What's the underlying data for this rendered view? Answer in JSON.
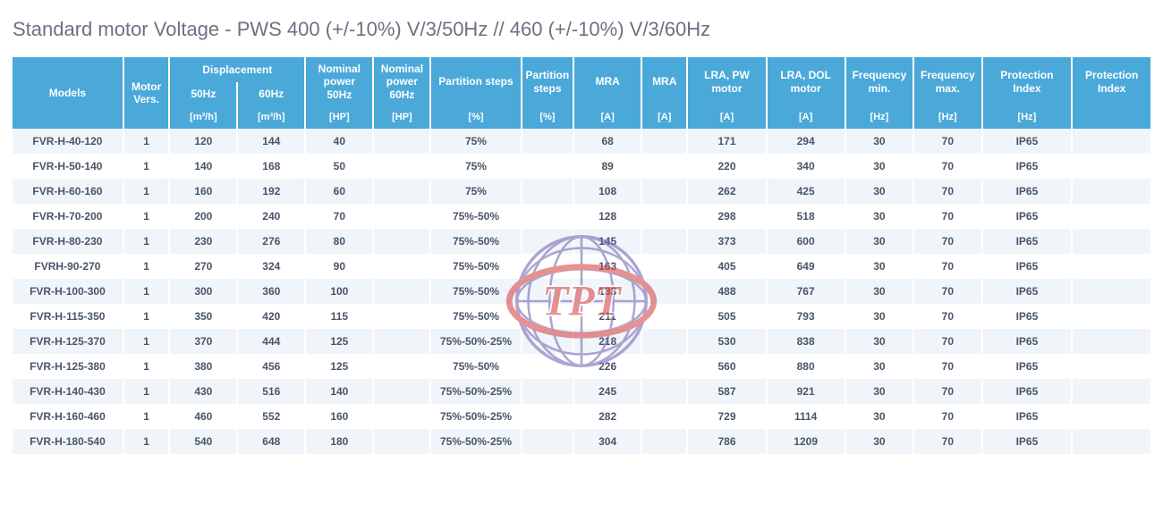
{
  "title": "Standard motor Voltage - PWS  400 (+/-10%) V/3/50Hz // 460 (+/-10%) V/3/60Hz",
  "colors": {
    "header_bg": "#4aa9d9",
    "header_fg": "#ffffff",
    "row_odd_bg": "#f0f5fa",
    "row_even_bg": "#ffffff",
    "text": "#4a5568",
    "title": "#6b7280"
  },
  "watermark": {
    "text": "TPT",
    "globe_meridian_color": "#7a6bb3",
    "globe_ring_color": "#d64a4a",
    "text_color": "#d64a4a",
    "text_outline": "#ffffff"
  },
  "table": {
    "header_row1": [
      "Models",
      "Motor Vers.",
      "Displacement 50Hz",
      "Displacement 60Hz",
      "Nominal power 50Hz",
      "Nominal power 60Hz",
      "Partition steps",
      "Partition steps",
      "MRA",
      "MRA",
      "LRA, PW motor",
      "LRA, DOL motor",
      "Frequency min.",
      "Frequency max.",
      "Protection Index",
      "Protection Index"
    ],
    "units": [
      "",
      "",
      "[m³/h]",
      "[m³/h]",
      "[HP]",
      "[HP]",
      "[%]",
      "[%]",
      "[A]",
      "[A]",
      "[A]",
      "[A]",
      "[Hz]",
      "[Hz]",
      "[Hz]",
      ""
    ],
    "rows": [
      {
        "model": "FVR-H-40-120",
        "vers": "1",
        "d50": "120",
        "d60": "144",
        "np50": "40",
        "ps": "75%",
        "mra": "68",
        "lra_pw": "171",
        "lra_dol": "294",
        "fmin": "30",
        "fmax": "70",
        "prot": "IP65"
      },
      {
        "model": "FVR-H-50-140",
        "vers": "1",
        "d50": "140",
        "d60": "168",
        "np50": "50",
        "ps": "75%",
        "mra": "89",
        "lra_pw": "220",
        "lra_dol": "340",
        "fmin": "30",
        "fmax": "70",
        "prot": "IP65"
      },
      {
        "model": "FVR-H-60-160",
        "vers": "1",
        "d50": "160",
        "d60": "192",
        "np50": "60",
        "ps": "75%",
        "mra": "108",
        "lra_pw": "262",
        "lra_dol": "425",
        "fmin": "30",
        "fmax": "70",
        "prot": "IP65"
      },
      {
        "model": "FVR-H-70-200",
        "vers": "1",
        "d50": "200",
        "d60": "240",
        "np50": "70",
        "ps": "75%-50%",
        "mra": "128",
        "lra_pw": "298",
        "lra_dol": "518",
        "fmin": "30",
        "fmax": "70",
        "prot": "IP65"
      },
      {
        "model": "FVR-H-80-230",
        "vers": "1",
        "d50": "230",
        "d60": "276",
        "np50": "80",
        "ps": "75%-50%",
        "mra": "145",
        "lra_pw": "373",
        "lra_dol": "600",
        "fmin": "30",
        "fmax": "70",
        "prot": "IP65"
      },
      {
        "model": "FVRH-90-270",
        "vers": "1",
        "d50": "270",
        "d60": "324",
        "np50": "90",
        "ps": "75%-50%",
        "mra": "163",
        "lra_pw": "405",
        "lra_dol": "649",
        "fmin": "30",
        "fmax": "70",
        "prot": "IP65"
      },
      {
        "model": "FVR-H-100-300",
        "vers": "1",
        "d50": "300",
        "d60": "360",
        "np50": "100",
        "ps": "75%-50%",
        "mra": "183",
        "lra_pw": "488",
        "lra_dol": "767",
        "fmin": "30",
        "fmax": "70",
        "prot": "IP65"
      },
      {
        "model": "FVR-H-115-350",
        "vers": "1",
        "d50": "350",
        "d60": "420",
        "np50": "115",
        "ps": "75%-50%",
        "mra": "211",
        "lra_pw": "505",
        "lra_dol": "793",
        "fmin": "30",
        "fmax": "70",
        "prot": "IP65"
      },
      {
        "model": "FVR-H-125-370",
        "vers": "1",
        "d50": "370",
        "d60": "444",
        "np50": "125",
        "ps": "75%-50%-25%",
        "mra": "218",
        "lra_pw": "530",
        "lra_dol": "838",
        "fmin": "30",
        "fmax": "70",
        "prot": "IP65"
      },
      {
        "model": "FVR-H-125-380",
        "vers": "1",
        "d50": "380",
        "d60": "456",
        "np50": "125",
        "ps": "75%-50%",
        "mra": "226",
        "lra_pw": "560",
        "lra_dol": "880",
        "fmin": "30",
        "fmax": "70",
        "prot": "IP65"
      },
      {
        "model": "FVR-H-140-430",
        "vers": "1",
        "d50": "430",
        "d60": "516",
        "np50": "140",
        "ps": "75%-50%-25%",
        "mra": "245",
        "lra_pw": "587",
        "lra_dol": "921",
        "fmin": "30",
        "fmax": "70",
        "prot": "IP65"
      },
      {
        "model": "FVR-H-160-460",
        "vers": "1",
        "d50": "460",
        "d60": "552",
        "np50": "160",
        "ps": "75%-50%-25%",
        "mra": "282",
        "lra_pw": "729",
        "lra_dol": "1114",
        "fmin": "30",
        "fmax": "70",
        "prot": "IP65"
      },
      {
        "model": "FVR-H-180-540",
        "vers": "1",
        "d50": "540",
        "d60": "648",
        "np50": "180",
        "ps": "75%-50%-25%",
        "mra": "304",
        "lra_pw": "786",
        "lra_dol": "1209",
        "fmin": "30",
        "fmax": "70",
        "prot": "IP65"
      }
    ],
    "col_widths_pct": [
      10,
      4,
      6,
      6,
      6,
      5,
      8,
      4,
      6,
      4,
      7,
      7,
      6,
      6,
      8,
      7
    ]
  }
}
